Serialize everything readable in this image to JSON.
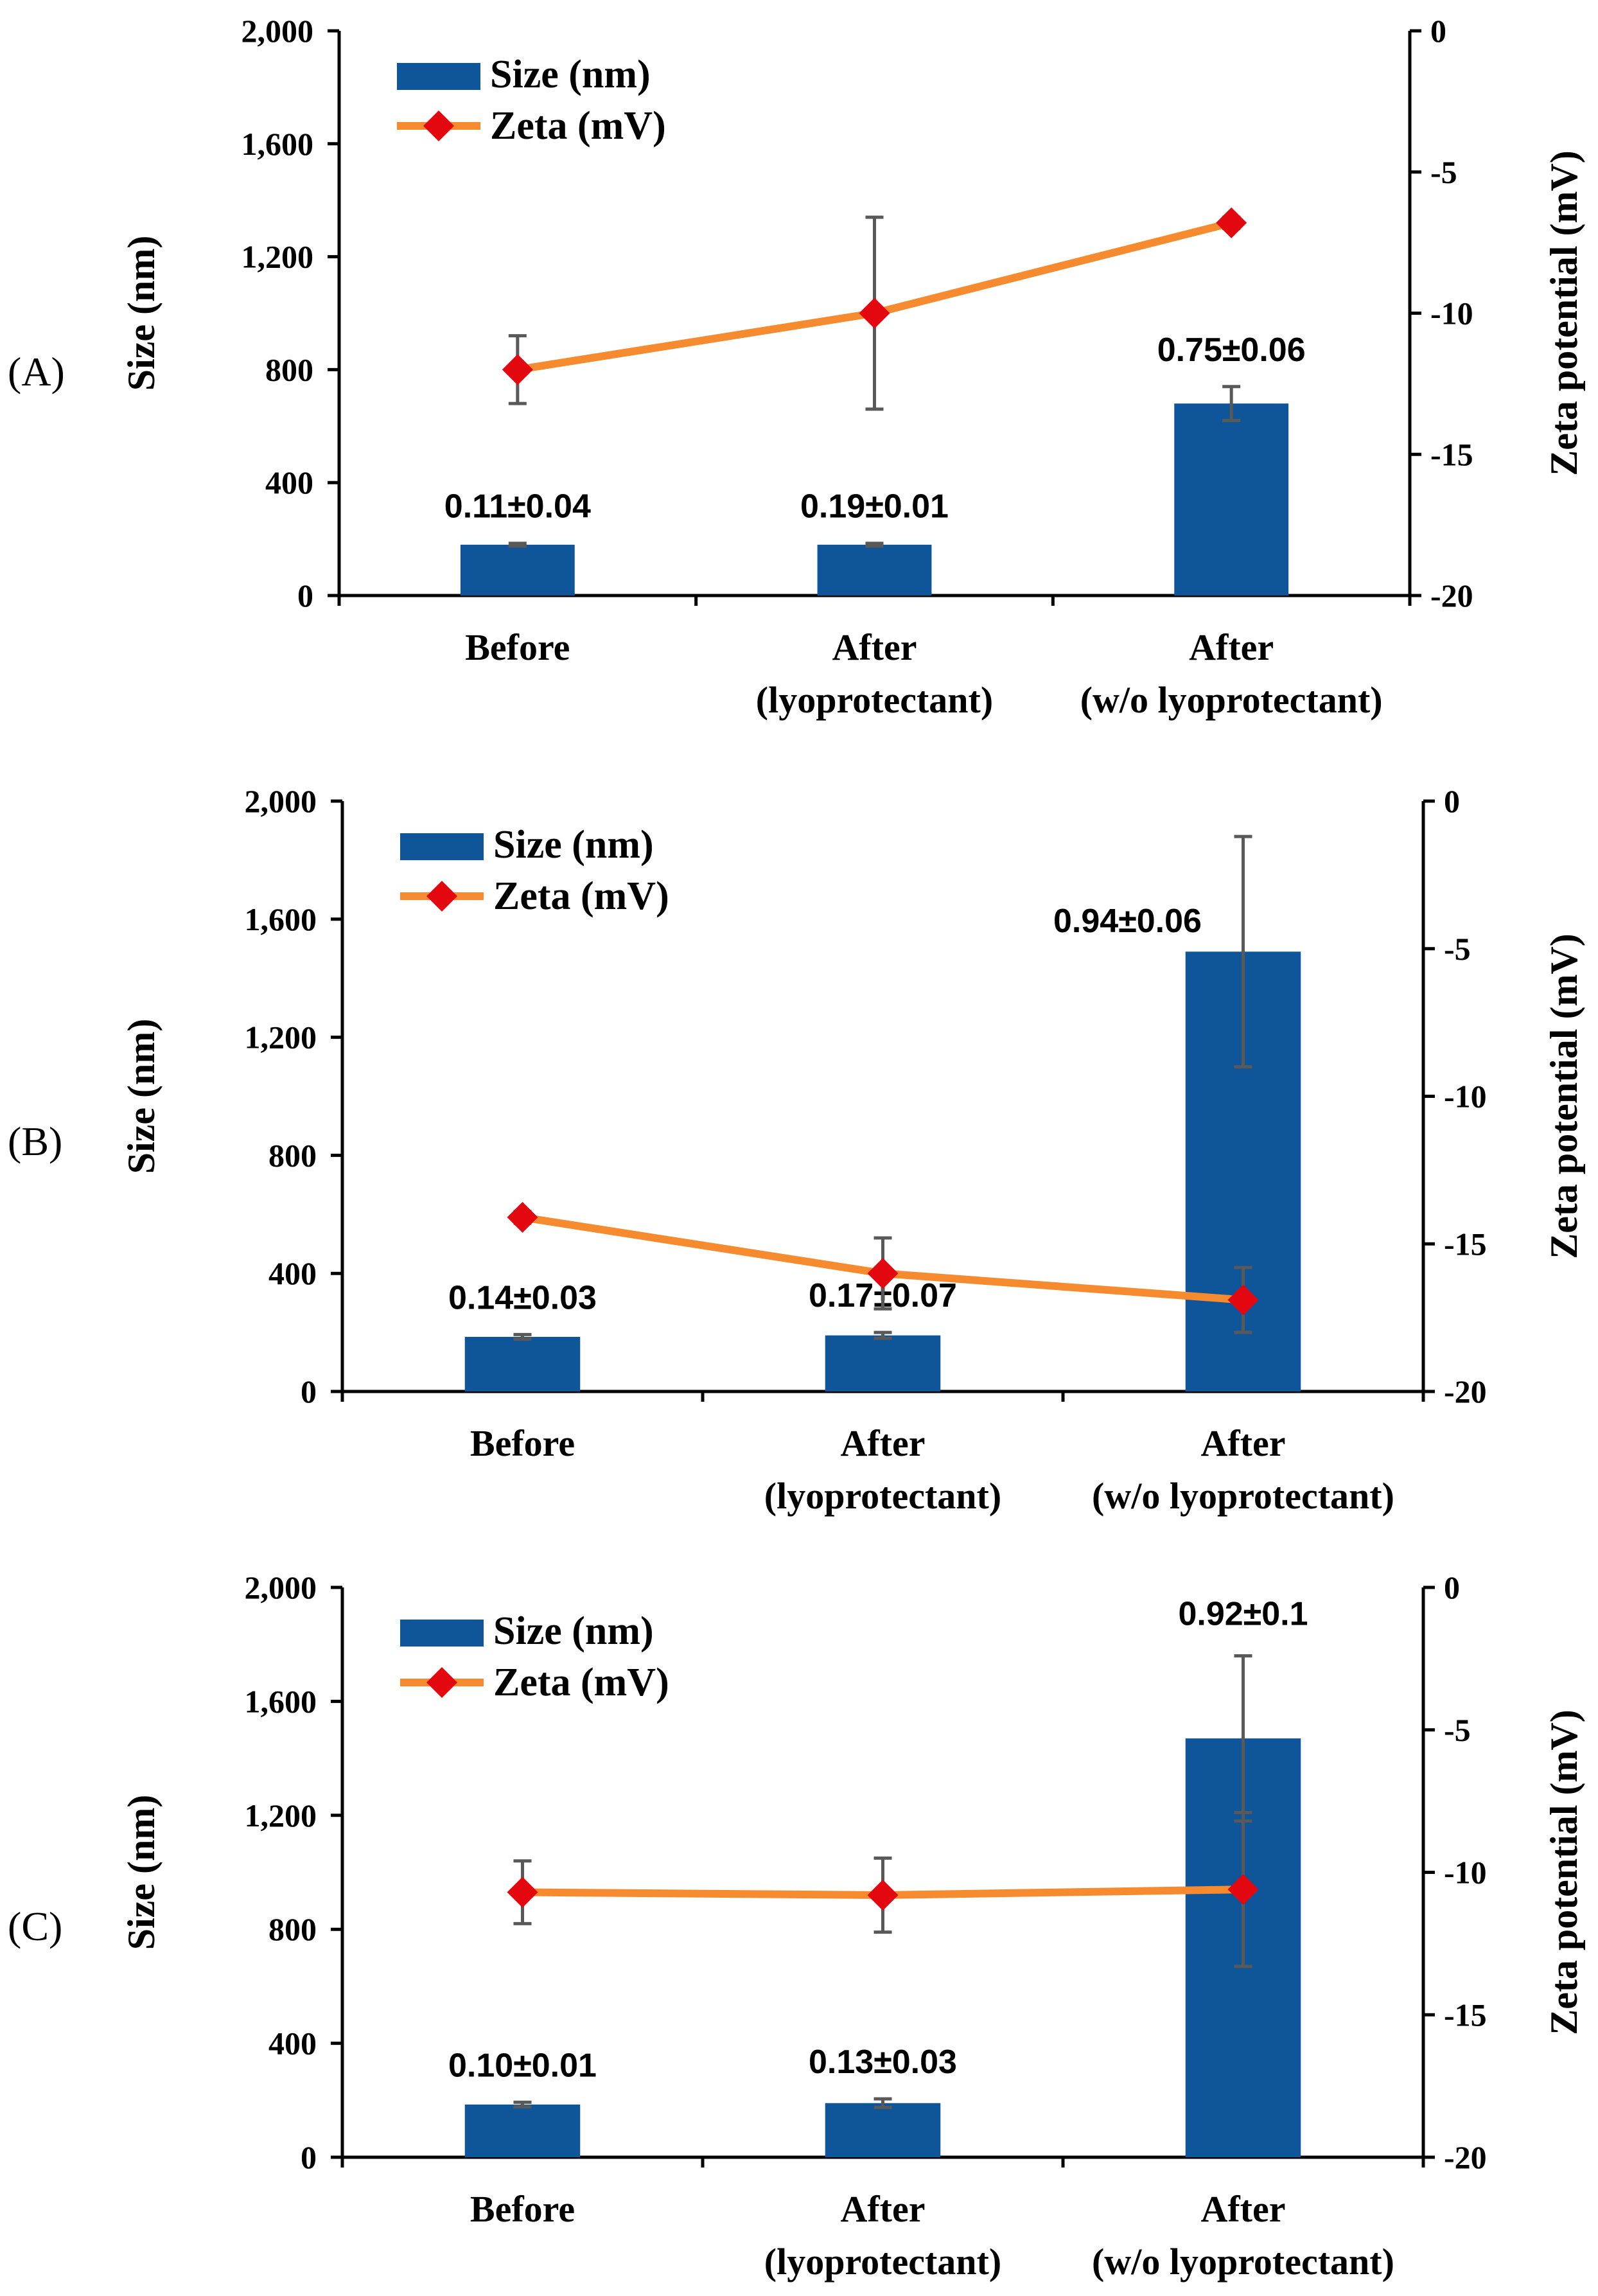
{
  "colors": {
    "bar": "#0E5599",
    "line": "#F58A2E",
    "marker": "#E3080F",
    "error_bar": "#595959",
    "axis": "#000000"
  },
  "chart_data": [
    {
      "type": "bar+line",
      "panel_label": "(A)",
      "categories": [
        [
          "Before"
        ],
        [
          "After",
          "(lyoprotectant)"
        ],
        [
          "After",
          "(w/o lyoprotectant)"
        ]
      ],
      "ylabel": "Size (nm)",
      "y2label": "Zeta potential (mV)",
      "ylim": [
        0,
        2000
      ],
      "y2lim": [
        -20,
        0
      ],
      "yticks": [
        "0",
        "400",
        "800",
        "1,200",
        "1,600",
        "2,000"
      ],
      "y2ticks": [
        "-20",
        "-15",
        "-10",
        "-5",
        "0"
      ],
      "legend": {
        "size_label": "Size (nm)",
        "zeta_label": "Zeta (mV)",
        "placement": "top-left"
      },
      "series": [
        {
          "name": "Size (nm)",
          "kind": "bar",
          "values": [
            180,
            180,
            680
          ],
          "errors": [
            5,
            5,
            60
          ]
        },
        {
          "name": "Zeta (mV)",
          "kind": "line",
          "values": [
            -12,
            -10,
            -6.8
          ],
          "errors": [
            1.2,
            3.4,
            0.2
          ]
        }
      ],
      "annotations": [
        "0.11±0.04",
        "0.19±0.01",
        "0.75±0.06"
      ]
    },
    {
      "type": "bar+line",
      "panel_label": "(B)",
      "categories": [
        [
          "Before"
        ],
        [
          "After",
          "(lyoprotectant)"
        ],
        [
          "After",
          "(w/o lyoprotectant)"
        ]
      ],
      "ylabel": "Size (nm)",
      "y2label": "Zeta potential (mV)",
      "ylim": [
        0,
        2000
      ],
      "y2lim": [
        -20,
        0
      ],
      "yticks": [
        "0",
        "400",
        "800",
        "1,200",
        "1,600",
        "2,000"
      ],
      "y2ticks": [
        "-20",
        "-15",
        "-10",
        "-5",
        "0"
      ],
      "legend": {
        "size_label": "Size (nm)",
        "zeta_label": "Zeta (mV)",
        "placement": "top-left"
      },
      "series": [
        {
          "name": "Size (nm)",
          "kind": "bar",
          "values": [
            185,
            190,
            1490
          ],
          "errors": [
            8,
            10,
            390
          ]
        },
        {
          "name": "Zeta (mV)",
          "kind": "line",
          "values": [
            -14.1,
            -16,
            -16.9
          ],
          "errors": [
            0.2,
            1.2,
            1.1
          ]
        }
      ],
      "annotations": [
        "0.14±0.03",
        "0.17±0.07",
        "0.94±0.06"
      ]
    },
    {
      "type": "bar+line",
      "panel_label": "(C)",
      "categories": [
        [
          "Before"
        ],
        [
          "After",
          "(lyoprotectant)"
        ],
        [
          "After",
          "(w/o lyoprotectant)"
        ]
      ],
      "ylabel": "Size (nm)",
      "y2label": "Zeta potential (mV)",
      "ylim": [
        0,
        2000
      ],
      "y2lim": [
        -20,
        0
      ],
      "yticks": [
        "0",
        "400",
        "800",
        "1,200",
        "1,600",
        "2,000"
      ],
      "y2ticks": [
        "-20",
        "-15",
        "-10",
        "-5",
        "0"
      ],
      "legend": {
        "size_label": "Size (nm)",
        "zeta_label": "Zeta (mV)",
        "placement": "top-left"
      },
      "series": [
        {
          "name": "Size (nm)",
          "kind": "bar",
          "values": [
            185,
            190,
            1470
          ],
          "errors": [
            8,
            15,
            290
          ]
        },
        {
          "name": "Zeta (mV)",
          "kind": "line",
          "values": [
            -10.7,
            -10.8,
            -10.6
          ],
          "errors": [
            1.1,
            1.3,
            2.7
          ]
        }
      ],
      "annotations": [
        "0.10±0.01",
        "0.13±0.03",
        "0.92±0.1"
      ]
    }
  ]
}
